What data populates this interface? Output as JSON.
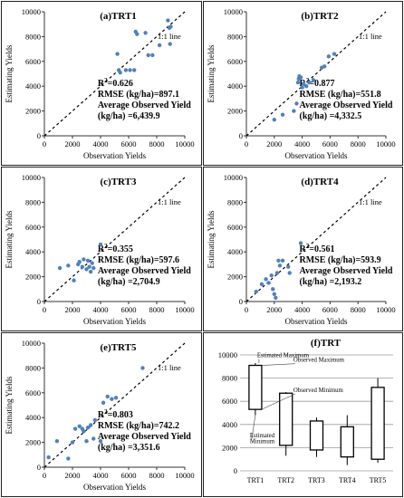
{
  "chart_data": [
    {
      "type": "scatter",
      "title": "(a)TRT1",
      "xlabel": "Observation Yields",
      "ylabel": "Estimating Yields",
      "xlim": [
        0,
        10000
      ],
      "ylim": [
        0,
        10000
      ],
      "xticks": [
        "0",
        "2000",
        "4000",
        "6000",
        "8000",
        "10000"
      ],
      "yticks": [
        "0",
        "2000",
        "4000",
        "6000",
        "8000",
        "10000"
      ],
      "line_label": "1:1 line",
      "stats": [
        "R2=0.626",
        "RMSE (kg/ha)=897.1",
        "Average Observed Yield",
        "(kg/ha) =6,439.9"
      ],
      "x": [
        5200,
        5300,
        5400,
        5800,
        6100,
        6400,
        6500,
        6600,
        7200,
        7400,
        7700,
        8200,
        8800,
        8900,
        8950,
        9000
      ],
      "y": [
        6600,
        5300,
        5100,
        5300,
        5300,
        5300,
        8400,
        8200,
        8300,
        6500,
        6500,
        7300,
        9300,
        8700,
        7400,
        8800
      ]
    },
    {
      "type": "scatter",
      "title": "(b)TRT2",
      "xlabel": "Observation Yields",
      "ylabel": "Estimating Yields",
      "xlim": [
        0,
        10000
      ],
      "ylim": [
        0,
        10000
      ],
      "xticks": [
        "0",
        "2000",
        "4000",
        "6000",
        "8000",
        "10000"
      ],
      "yticks": [
        "0",
        "2000",
        "4000",
        "6000",
        "8000",
        "10000"
      ],
      "line_label": "1:1 line",
      "stats": [
        "R2=0.877",
        "RMSE (kg/ha)=551.8",
        "Average Observed Yield",
        "(kg/ha) =4,332.5"
      ],
      "x": [
        2000,
        2600,
        3400,
        3600,
        3700,
        3750,
        3800,
        3900,
        4000,
        4100,
        4300,
        4500,
        4800,
        5400,
        5600,
        5900,
        6300
      ],
      "y": [
        1300,
        1700,
        2000,
        2600,
        4300,
        4600,
        4800,
        4700,
        3900,
        4200,
        4000,
        4300,
        4500,
        5500,
        5600,
        6400,
        6600
      ]
    },
    {
      "type": "scatter",
      "title": "(c)TRT3",
      "xlabel": "Observation Yields",
      "ylabel": "Estimating Yields",
      "xlim": [
        0,
        10000
      ],
      "ylim": [
        0,
        10000
      ],
      "xticks": [
        "0",
        "2000",
        "4000",
        "6000",
        "8000",
        "10000"
      ],
      "yticks": [
        "0",
        "2000",
        "4000",
        "6000",
        "8000",
        "10000"
      ],
      "line_label": "1:1 line",
      "stats": [
        "R2=0.355",
        "RMSE (kg/ha)=597.6",
        "Average Observed Yield",
        "(kg/ha) =2,704.9"
      ],
      "x": [
        1100,
        1700,
        2100,
        2400,
        2500,
        2700,
        2800,
        3000,
        3100,
        3200,
        3300,
        3400,
        3500,
        4000
      ],
      "y": [
        2700,
        2900,
        1700,
        3000,
        3200,
        2800,
        3400,
        2600,
        3300,
        2800,
        2400,
        3100,
        2700,
        4600
      ]
    },
    {
      "type": "scatter",
      "title": "(d)TRT4",
      "xlabel": "Observation Yields",
      "ylabel": "Estimating Yields",
      "xlim": [
        0,
        10000
      ],
      "ylim": [
        0,
        10000
      ],
      "xticks": [
        "0",
        "2000",
        "4000",
        "6000",
        "8000",
        "10000"
      ],
      "yticks": [
        "0",
        "2000",
        "4000",
        "6000",
        "8000",
        "10000"
      ],
      "line_label": "1:1 line",
      "stats": [
        "R2=0.561",
        "RMSE (kg/ha)=593.9",
        "Average Observed Yield",
        "(kg/ha) =2,193.2"
      ],
      "x": [
        700,
        1100,
        1400,
        1600,
        1800,
        1900,
        2000,
        2100,
        2200,
        2300,
        2400,
        2600,
        3000,
        3100,
        3900
      ],
      "y": [
        800,
        1400,
        1800,
        1500,
        2100,
        1000,
        600,
        300,
        2300,
        3300,
        2900,
        3300,
        2800,
        2300,
        4700
      ]
    },
    {
      "type": "scatter",
      "title": "(e)TRT5",
      "xlabel": "Observation Yields",
      "ylabel": "Estimating Yields",
      "xlim": [
        0,
        10000
      ],
      "ylim": [
        0,
        10000
      ],
      "xticks": [
        "0",
        "2000",
        "4000",
        "6000",
        "8000",
        "10000"
      ],
      "yticks": [
        "0",
        "2000",
        "4000",
        "6000",
        "8000",
        "10000"
      ],
      "line_label": "1:1 line",
      "stats": [
        "R2=0.803",
        "RMSE (kg/ha)=742.2",
        "Average Observed Yield",
        "(kg/ha) =3,351.6"
      ],
      "x": [
        300,
        900,
        1700,
        2000,
        2200,
        2500,
        2700,
        2800,
        3000,
        3100,
        3300,
        3500,
        3600,
        4000,
        4200,
        4500,
        4800,
        5100,
        7000
      ],
      "y": [
        800,
        2100,
        700,
        2000,
        3100,
        3300,
        3100,
        2900,
        2100,
        3200,
        3400,
        2300,
        3800,
        2100,
        5200,
        5700,
        5500,
        5600,
        8000
      ]
    },
    {
      "type": "boxplot",
      "title": "(f)TRT",
      "ylim": [
        0,
        10000
      ],
      "yticks": [
        "0",
        "1000",
        "2000",
        "3000",
        "4000",
        "5000",
        "6000",
        "7000",
        "8000",
        "9000",
        "10000"
      ],
      "categories": [
        "TRT1",
        "TRT2",
        "TRT3",
        "TRT4",
        "TRT5"
      ],
      "boxes": [
        {
          "min": 4800,
          "q1": 5300,
          "q3": 9100,
          "max": 9300
        },
        {
          "min": 1300,
          "q1": 2200,
          "q3": 6700,
          "max": 6800
        },
        {
          "min": 1200,
          "q1": 1800,
          "q3": 4300,
          "max": 4600
        },
        {
          "min": 500,
          "q1": 1200,
          "q3": 3800,
          "max": 4800
        },
        {
          "min": 700,
          "q1": 1000,
          "q3": 7200,
          "max": 8000
        }
      ],
      "annotations": [
        "Estimated Maximum",
        "Observed Maximum",
        "Observed Minimum",
        "Estimated",
        "Minimum"
      ]
    }
  ],
  "style": {
    "point_color": "#4f81bd",
    "axis_color": "#333333",
    "grid_color": "#9a9a9a"
  }
}
